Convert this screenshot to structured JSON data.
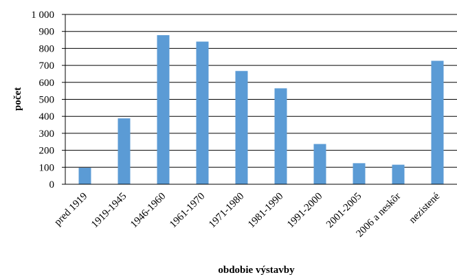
{
  "chart_data": {
    "type": "bar",
    "title": "",
    "xlabel": "obdobie výstavby",
    "ylabel": "počet",
    "ylim": [
      0,
      1000
    ],
    "yticks": [
      0,
      100,
      200,
      300,
      400,
      500,
      600,
      700,
      800,
      900,
      1000
    ],
    "ytick_labels": [
      "0",
      "100",
      "200",
      "300",
      "400",
      "500",
      "600",
      "700",
      "800",
      "900",
      "1 000"
    ],
    "grid": true,
    "legend": "none",
    "bar_color": "#5B9BD5",
    "categories": [
      "pred 1919",
      "1919-1945",
      "1946-1960",
      "1961-1970",
      "1971-1980",
      "1981-1990",
      "1991-2000",
      "2001-2005",
      "2006 a neskôr",
      "nezistené"
    ],
    "values": [
      97,
      388,
      878,
      840,
      667,
      565,
      237,
      124,
      115,
      727
    ]
  }
}
